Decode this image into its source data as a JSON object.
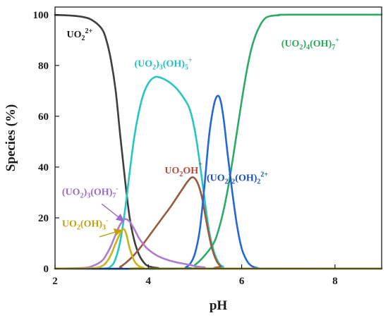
{
  "chart_data": {
    "type": "line",
    "xlabel": "pH",
    "ylabel": "Species (%)",
    "xlim": [
      2,
      9
    ],
    "ylim": [
      0,
      103
    ],
    "xticks": [
      2,
      4,
      6,
      8
    ],
    "yticks": [
      0,
      20,
      40,
      60,
      80,
      100
    ],
    "grid": false,
    "legend": "none",
    "series": [
      {
        "name": "UO2 2+",
        "label_parts": [
          [
            "UO",
            ""
          ],
          [
            "2",
            "sub"
          ],
          [
            "2+",
            "sup"
          ]
        ],
        "color": "#3f3f3f",
        "label_color": "#1a1a1a",
        "label_pos": [
          2.25,
          91
        ],
        "points": [
          [
            2.0,
            99.9
          ],
          [
            2.3,
            99.7
          ],
          [
            2.6,
            99.1
          ],
          [
            2.8,
            97.8
          ],
          [
            3.0,
            94.5
          ],
          [
            3.1,
            90.0
          ],
          [
            3.2,
            82.0
          ],
          [
            3.3,
            70.0
          ],
          [
            3.4,
            52.0
          ],
          [
            3.5,
            35.0
          ],
          [
            3.6,
            20.0
          ],
          [
            3.7,
            11.0
          ],
          [
            3.8,
            5.5
          ],
          [
            3.9,
            2.5
          ],
          [
            4.0,
            1.0
          ],
          [
            4.2,
            0.3
          ],
          [
            4.6,
            0.0
          ],
          [
            9.0,
            0.0
          ]
        ]
      },
      {
        "name": "(UO2)3(OH)5 +",
        "label_parts": [
          [
            "(UO",
            ""
          ],
          [
            "2",
            "sub"
          ],
          [
            ")",
            ""
          ],
          [
            "3",
            "sub"
          ],
          [
            "(OH)",
            ""
          ],
          [
            "5",
            "sub"
          ],
          [
            "+",
            "sup"
          ]
        ],
        "color": "#26c6c6",
        "label_color": "#1fbfc2",
        "label_pos": [
          3.7,
          79.5
        ],
        "points": [
          [
            2.0,
            0.0
          ],
          [
            3.0,
            0.0
          ],
          [
            3.2,
            1.0
          ],
          [
            3.3,
            4.0
          ],
          [
            3.4,
            11.0
          ],
          [
            3.5,
            23.0
          ],
          [
            3.6,
            38.0
          ],
          [
            3.7,
            52.0
          ],
          [
            3.8,
            62.0
          ],
          [
            3.9,
            69.0
          ],
          [
            4.0,
            73.0
          ],
          [
            4.1,
            75.0
          ],
          [
            4.2,
            75.5
          ],
          [
            4.4,
            74.0
          ],
          [
            4.6,
            71.0
          ],
          [
            4.8,
            66.0
          ],
          [
            4.9,
            62.0
          ],
          [
            5.0,
            54.0
          ],
          [
            5.1,
            42.0
          ],
          [
            5.2,
            28.0
          ],
          [
            5.3,
            15.0
          ],
          [
            5.4,
            7.0
          ],
          [
            5.5,
            2.5
          ],
          [
            5.6,
            0.8
          ],
          [
            5.8,
            0.0
          ],
          [
            9.0,
            0.0
          ]
        ]
      },
      {
        "name": "(UO2)4(OH)7 +",
        "label_parts": [
          [
            "(UO",
            ""
          ],
          [
            "2",
            "sub"
          ],
          [
            ")",
            ""
          ],
          [
            "4",
            "sub"
          ],
          [
            "(OH)",
            ""
          ],
          [
            "7",
            "sub"
          ],
          [
            "+",
            "sup"
          ]
        ],
        "color": "#2eaa68",
        "label_color": "#2aa860",
        "label_pos": [
          6.85,
          87.5
        ],
        "points": [
          [
            2.0,
            0.0
          ],
          [
            4.8,
            0.0
          ],
          [
            5.0,
            1.5
          ],
          [
            5.2,
            5.0
          ],
          [
            5.4,
            10.0
          ],
          [
            5.5,
            15.0
          ],
          [
            5.6,
            22.0
          ],
          [
            5.7,
            31.0
          ],
          [
            5.8,
            42.0
          ],
          [
            5.9,
            54.0
          ],
          [
            6.0,
            66.0
          ],
          [
            6.1,
            77.0
          ],
          [
            6.2,
            86.0
          ],
          [
            6.3,
            92.0
          ],
          [
            6.4,
            96.0
          ],
          [
            6.5,
            98.5
          ],
          [
            6.6,
            99.4
          ],
          [
            6.8,
            99.8
          ],
          [
            7.0,
            100.0
          ],
          [
            9.0,
            100.0
          ]
        ]
      },
      {
        "name": "UO2OH+",
        "label_parts": [
          [
            "UO",
            ""
          ],
          [
            "2",
            "sub"
          ],
          [
            "OH",
            ""
          ],
          [
            "+",
            "sup"
          ]
        ],
        "color": "#9a5a3c",
        "label_color": "#b84a3a",
        "label_pos": [
          4.35,
          37.5
        ],
        "points": [
          [
            2.0,
            0.0
          ],
          [
            3.3,
            0.0
          ],
          [
            3.4,
            0.8
          ],
          [
            3.5,
            2.0
          ],
          [
            3.7,
            5.5
          ],
          [
            3.9,
            10.0
          ],
          [
            4.1,
            15.0
          ],
          [
            4.3,
            20.0
          ],
          [
            4.5,
            25.0
          ],
          [
            4.7,
            30.5
          ],
          [
            4.85,
            34.5
          ],
          [
            4.95,
            36.0
          ],
          [
            5.05,
            34.0
          ],
          [
            5.15,
            28.0
          ],
          [
            5.25,
            18.0
          ],
          [
            5.35,
            9.0
          ],
          [
            5.45,
            3.5
          ],
          [
            5.55,
            1.0
          ],
          [
            5.7,
            0.0
          ],
          [
            9.0,
            0.0
          ]
        ]
      },
      {
        "name": "(UO2)2(OH)2 2+",
        "label_parts": [
          [
            "(UO",
            ""
          ],
          [
            "2",
            "sub"
          ],
          [
            ")",
            ""
          ],
          [
            "2",
            "sub"
          ],
          [
            "(OH)",
            ""
          ],
          [
            "2",
            "sub"
          ],
          [
            "2+",
            "sup"
          ]
        ],
        "color": "#2468d8",
        "label_color": "#1a4fb8",
        "label_pos": [
          5.25,
          34.5
        ],
        "points": [
          [
            2.0,
            0.0
          ],
          [
            4.7,
            0.0
          ],
          [
            4.8,
            0.5
          ],
          [
            4.9,
            2.0
          ],
          [
            5.0,
            6.0
          ],
          [
            5.1,
            15.0
          ],
          [
            5.2,
            32.0
          ],
          [
            5.3,
            52.0
          ],
          [
            5.4,
            64.0
          ],
          [
            5.48,
            68.0
          ],
          [
            5.55,
            66.0
          ],
          [
            5.62,
            58.0
          ],
          [
            5.7,
            45.0
          ],
          [
            5.8,
            30.0
          ],
          [
            5.9,
            17.0
          ],
          [
            6.0,
            8.0
          ],
          [
            6.1,
            3.5
          ],
          [
            6.2,
            1.2
          ],
          [
            6.35,
            0.2
          ],
          [
            6.6,
            0.0
          ],
          [
            9.0,
            0.0
          ]
        ]
      },
      {
        "name": "(UO2)3(OH)7 -",
        "label_parts": [
          [
            "(UO",
            ""
          ],
          [
            "2",
            "sub"
          ],
          [
            ")",
            ""
          ],
          [
            "3",
            "sub"
          ],
          [
            "(OH)",
            ""
          ],
          [
            "7",
            "sub"
          ],
          [
            "-",
            "sup"
          ]
        ],
        "color": "#b07ad0",
        "label_color": "#9a6ac8",
        "label_pos": [
          2.15,
          29.0
        ],
        "points": [
          [
            2.0,
            0.0
          ],
          [
            2.6,
            0.3
          ],
          [
            2.8,
            1.0
          ],
          [
            3.0,
            3.0
          ],
          [
            3.1,
            5.5
          ],
          [
            3.2,
            9.0
          ],
          [
            3.3,
            13.5
          ],
          [
            3.4,
            17.5
          ],
          [
            3.5,
            19.5
          ],
          [
            3.6,
            18.5
          ],
          [
            3.7,
            15.5
          ],
          [
            3.8,
            12.0
          ],
          [
            3.9,
            9.5
          ],
          [
            4.0,
            7.5
          ],
          [
            4.2,
            5.0
          ],
          [
            4.4,
            3.5
          ],
          [
            4.6,
            2.5
          ],
          [
            4.8,
            1.8
          ],
          [
            5.0,
            1.0
          ],
          [
            5.2,
            0.5
          ],
          [
            5.5,
            0.0
          ],
          [
            9.0,
            0.0
          ]
        ]
      },
      {
        "name": "UO2(OH)3 -",
        "label_parts": [
          [
            "UO",
            ""
          ],
          [
            "2",
            "sub"
          ],
          [
            "(OH)",
            ""
          ],
          [
            "3",
            "sub"
          ],
          [
            "-",
            "sup"
          ]
        ],
        "color": "#c9b21a",
        "label_color": "#c0a012",
        "label_pos": [
          2.15,
          16.5
        ],
        "points": [
          [
            2.0,
            0.0
          ],
          [
            2.8,
            0.2
          ],
          [
            3.0,
            1.0
          ],
          [
            3.1,
            2.5
          ],
          [
            3.2,
            5.5
          ],
          [
            3.3,
            10.0
          ],
          [
            3.4,
            14.0
          ],
          [
            3.45,
            15.5
          ],
          [
            3.5,
            15.0
          ],
          [
            3.55,
            12.0
          ],
          [
            3.6,
            8.0
          ],
          [
            3.7,
            3.0
          ],
          [
            3.8,
            1.0
          ],
          [
            3.9,
            0.3
          ],
          [
            4.0,
            0.0
          ],
          [
            9.0,
            0.0
          ]
        ]
      }
    ],
    "arrows": [
      {
        "series": "(UO2)3(OH)7 -",
        "from": [
          3.0,
          25.5
        ],
        "to": [
          3.45,
          19.0
        ],
        "color": "#9a6ac8"
      },
      {
        "series": "UO2(OH)3 -",
        "from": [
          2.95,
          12.5
        ],
        "to": [
          3.4,
          15.0
        ],
        "color": "#c0a012"
      }
    ]
  }
}
